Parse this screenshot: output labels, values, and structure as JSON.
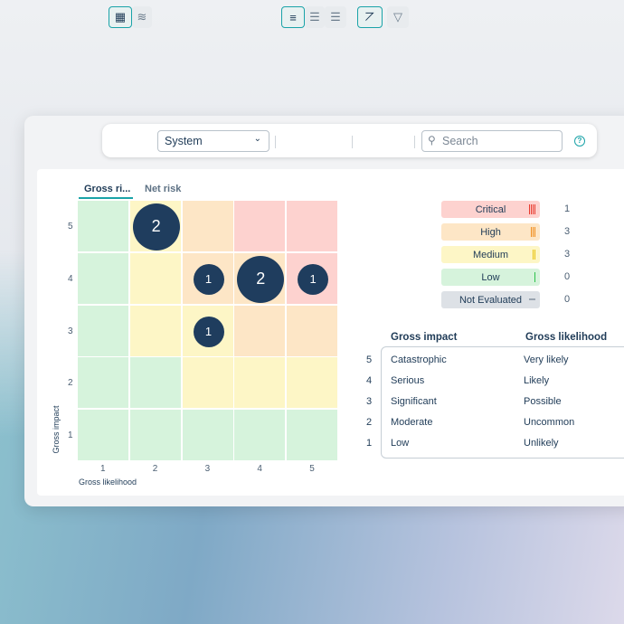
{
  "toolbar": {
    "select_value": "System",
    "search_placeholder": "Search",
    "icons": [
      "table-icon",
      "layers-icon",
      "density-compact-icon",
      "density-medium-icon",
      "density-loose-icon",
      "chart-icon",
      "filter-icon",
      "help-icon"
    ]
  },
  "tabs": [
    {
      "label": "Gross ri...",
      "active": true
    },
    {
      "label": "Net risk",
      "active": false
    }
  ],
  "chart_data": {
    "type": "heatmap",
    "xlabel": "Gross likelihood",
    "ylabel": "Gross impact",
    "x_ticks": [
      "1",
      "2",
      "3",
      "4",
      "5"
    ],
    "y_ticks": [
      "5",
      "4",
      "3",
      "2",
      "1"
    ],
    "cell_levels": [
      [
        "Low",
        "Medium",
        "High",
        "Critical",
        "Critical"
      ],
      [
        "Low",
        "Medium",
        "High",
        "High",
        "Critical"
      ],
      [
        "Low",
        "Medium",
        "Medium",
        "High",
        "High"
      ],
      [
        "Low",
        "Low",
        "Medium",
        "Medium",
        "Medium"
      ],
      [
        "Low",
        "Low",
        "Low",
        "Low",
        "Low"
      ]
    ],
    "points": [
      {
        "likelihood": 2,
        "impact": 5,
        "count": 2
      },
      {
        "likelihood": 3,
        "impact": 4,
        "count": 1
      },
      {
        "likelihood": 4,
        "impact": 4,
        "count": 2
      },
      {
        "likelihood": 5,
        "impact": 4,
        "count": 1
      },
      {
        "likelihood": 3,
        "impact": 3,
        "count": 1
      }
    ]
  },
  "legend": [
    {
      "label": "Critical",
      "count": "1",
      "bg": "#fdd2cf",
      "bar": "#e83a2e",
      "bars": 4
    },
    {
      "label": "High",
      "count": "3",
      "bg": "#fde6c6",
      "bar": "#f08c1a",
      "bars": 3
    },
    {
      "label": "Medium",
      "count": "3",
      "bg": "#fdf6c6",
      "bar": "#e8c20a",
      "bars": 2
    },
    {
      "label": "Low",
      "count": "0",
      "bg": "#d6f3dc",
      "bar": "#2cc24a",
      "bars": 1
    },
    {
      "label": "Not Evaluated",
      "count": "0",
      "bg": "#dde1e6",
      "bar": "#9aa5b1",
      "bars": 0
    }
  ],
  "scale_table": {
    "headers": [
      "Gross impact",
      "Gross likelihood"
    ],
    "rows": [
      {
        "n": "5",
        "impact": "Catastrophic",
        "likelihood": "Very likely"
      },
      {
        "n": "4",
        "impact": "Serious",
        "likelihood": "Likely"
      },
      {
        "n": "3",
        "impact": "Significant",
        "likelihood": "Possible"
      },
      {
        "n": "2",
        "impact": "Moderate",
        "likelihood": "Uncommon"
      },
      {
        "n": "1",
        "impact": "Low",
        "likelihood": "Unlikely"
      }
    ]
  },
  "colors": {
    "accent": "#1aa3a8",
    "bubble": "#1f3d5e",
    "Low": "#d6f3dc",
    "Medium": "#fdf6c6",
    "High": "#fde6c6",
    "Critical": "#fdd2cf"
  }
}
